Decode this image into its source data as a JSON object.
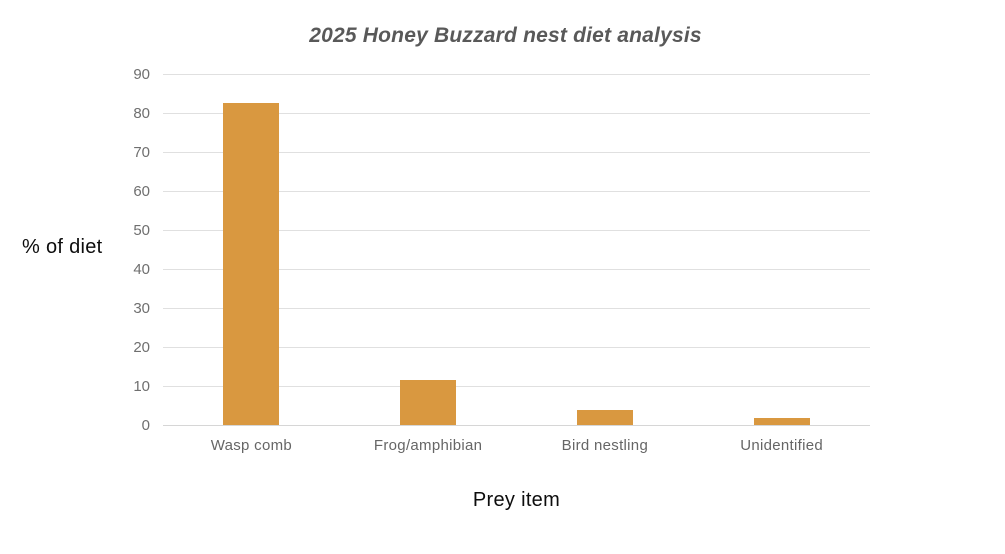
{
  "chart_data": {
    "type": "bar",
    "title": "2025 Honey Buzzard nest diet analysis",
    "xlabel": "Prey item",
    "ylabel": "% of diet",
    "categories": [
      "Wasp comb",
      "Frog/amphibian",
      "Bird nestling",
      "Unidentified"
    ],
    "values": [
      82.5,
      11.5,
      3.8,
      1.8
    ],
    "ylim": [
      0,
      90
    ],
    "yticks": [
      0,
      10,
      20,
      30,
      40,
      50,
      60,
      70,
      80,
      90
    ],
    "grid": true,
    "legend": false,
    "bar_color": "#d99840",
    "gridline_color": "#e0e0e0",
    "title_color": "#595959",
    "tick_label_color": "#6f6f6f",
    "category_label_color": "#666666",
    "axis_title_color": "#0d0d0d",
    "background_color": "#ffffff"
  }
}
